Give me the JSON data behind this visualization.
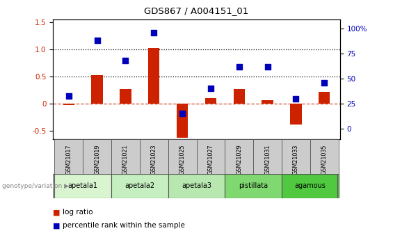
{
  "title": "GDS867 / A004151_01",
  "samples": [
    "GSM21017",
    "GSM21019",
    "GSM21021",
    "GSM21023",
    "GSM21025",
    "GSM21027",
    "GSM21029",
    "GSM21031",
    "GSM21033",
    "GSM21035"
  ],
  "log_ratio": [
    -0.02,
    0.52,
    0.27,
    1.02,
    -0.62,
    0.1,
    0.27,
    0.07,
    -0.38,
    0.22
  ],
  "percentile_rank_pct": [
    33,
    88,
    68,
    96,
    15,
    40,
    62,
    62,
    30,
    46
  ],
  "groups": [
    {
      "label": "apetala1",
      "start": 0,
      "end": 1,
      "color": "#d8f5d0"
    },
    {
      "label": "apetala2",
      "start": 2,
      "end": 3,
      "color": "#c5efc0"
    },
    {
      "label": "apetala3",
      "start": 4,
      "end": 5,
      "color": "#b8e8b0"
    },
    {
      "label": "pistillata",
      "start": 6,
      "end": 7,
      "color": "#80d870"
    },
    {
      "label": "agamous",
      "start": 8,
      "end": 9,
      "color": "#50c840"
    }
  ],
  "bar_color": "#cc2200",
  "dot_color": "#0000bb",
  "ylim_left": [
    -0.65,
    1.55
  ],
  "ylim_right": [
    -10.4167,
    109.375
  ],
  "yticks_left": [
    -0.5,
    0.0,
    0.5,
    1.0,
    1.5
  ],
  "yticks_right": [
    0,
    25,
    50,
    75,
    100
  ],
  "hline_dashed": 0.0,
  "hline_dotted": [
    0.5,
    1.0
  ],
  "background_color": "#ffffff",
  "sample_box_color": "#cccccc",
  "genotype_label": "genotype/variation"
}
